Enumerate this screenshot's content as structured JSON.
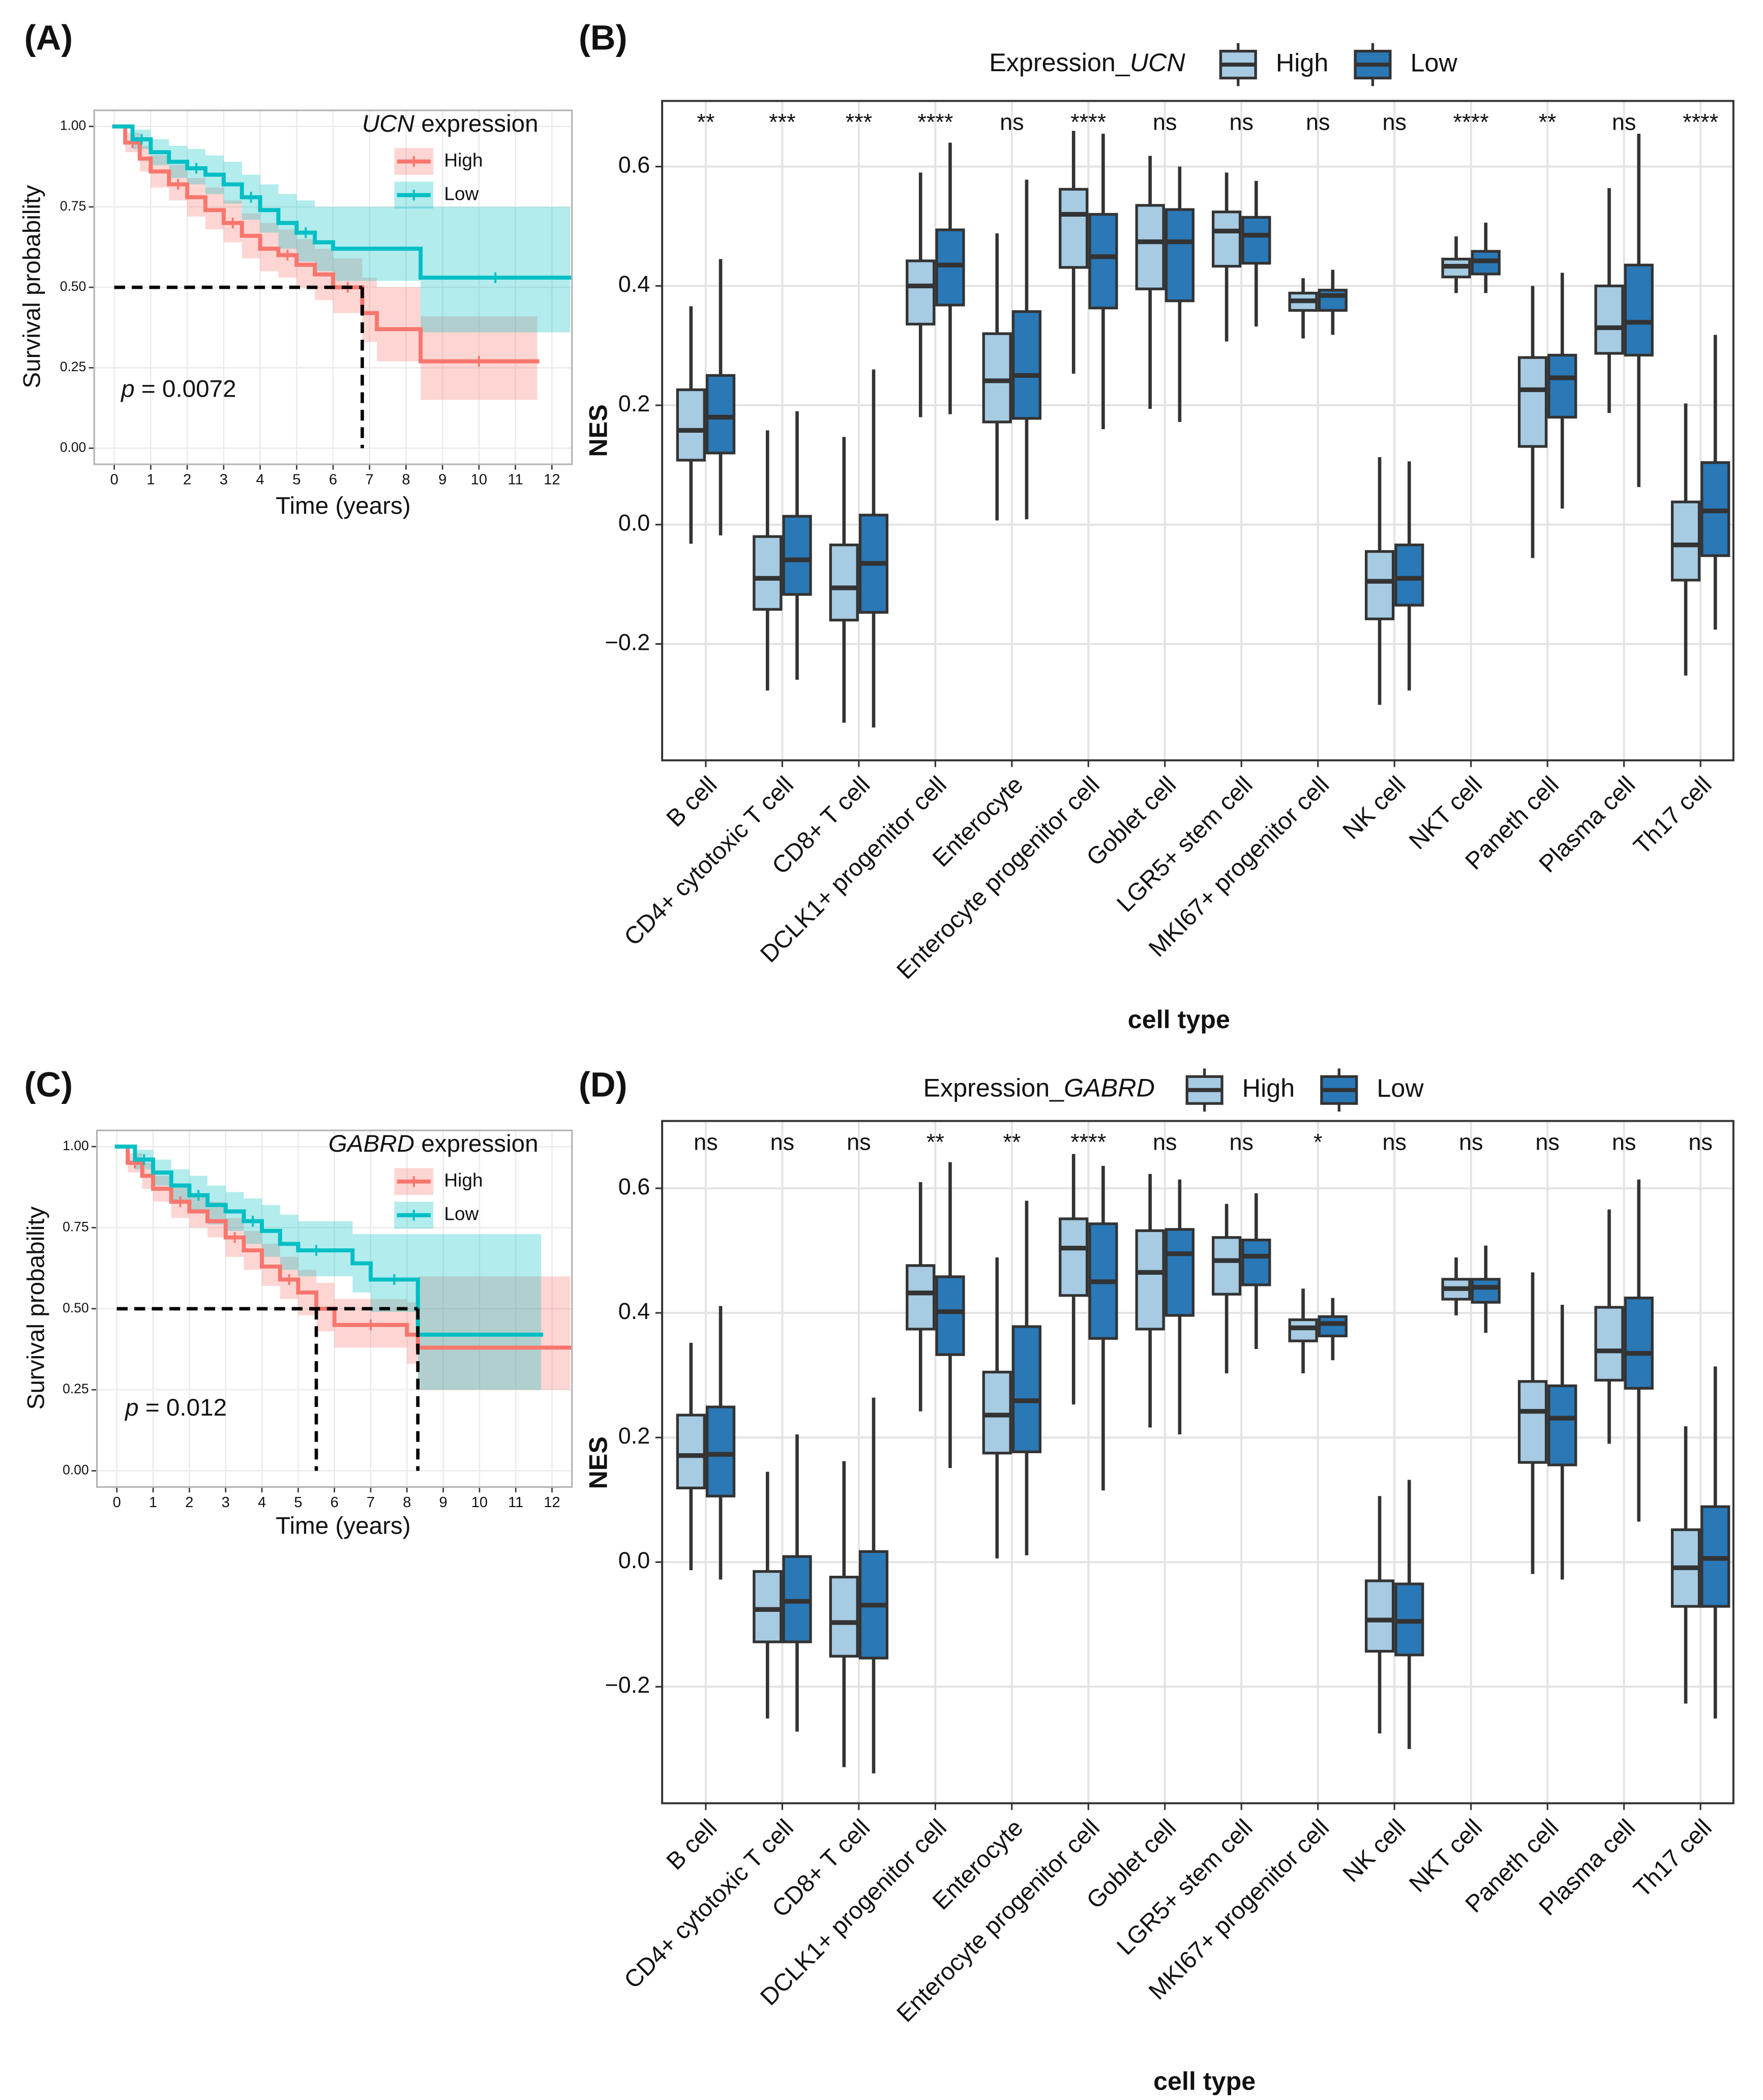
{
  "chart_data": [
    {
      "type": "survival",
      "panel_label": "(A)",
      "xlabel": "Time (years)",
      "ylabel": "Survival probability",
      "xlim": [
        -0.55,
        12.55
      ],
      "ylim": [
        -0.05,
        1.05
      ],
      "xticks": [
        0,
        1,
        2,
        3,
        4,
        5,
        6,
        7,
        8,
        9,
        10,
        11,
        12
      ],
      "yticks": [
        {
          "value": 0,
          "label": "0.00"
        },
        0.25,
        {
          "value": 0.5,
          "label": "0.50"
        },
        0.75,
        {
          "value": 1,
          "label": "1.00"
        }
      ],
      "grid": true,
      "legend_title": [
        "UCN",
        "expression"
      ],
      "annotation": [
        "p",
        "= 0.0072"
      ],
      "median_lines": {
        "y": 0.5,
        "x": [
          6.8
        ]
      },
      "series": [
        {
          "name": "High",
          "color": "#f8766d",
          "x": [
            0,
            0.3,
            0.7,
            1,
            1.5,
            2,
            2.5,
            3,
            3.5,
            4,
            4.5,
            5,
            5.5,
            6,
            6.8,
            7.2,
            8.4,
            11.6
          ],
          "survival": [
            1,
            0.95,
            0.9,
            0.86,
            0.82,
            0.78,
            0.74,
            0.7,
            0.66,
            0.62,
            0.6,
            0.57,
            0.54,
            0.5,
            0.42,
            0.37,
            0.27,
            0.27
          ],
          "lower": [
            1,
            0.92,
            0.86,
            0.81,
            0.77,
            0.72,
            0.68,
            0.64,
            0.59,
            0.55,
            0.53,
            0.5,
            0.46,
            0.42,
            0.33,
            0.27,
            0.15,
            0.15
          ],
          "upper": [
            1,
            0.98,
            0.94,
            0.91,
            0.88,
            0.84,
            0.81,
            0.77,
            0.73,
            0.7,
            0.68,
            0.65,
            0.62,
            0.59,
            0.53,
            0.5,
            0.41,
            0.41
          ]
        },
        {
          "name": "Low",
          "color": "#00bfc4",
          "x": [
            0,
            0.5,
            1,
            1.5,
            2,
            2.5,
            3,
            3.5,
            4,
            4.5,
            5,
            5.5,
            6,
            8.4,
            12.5
          ],
          "survival": [
            1,
            0.96,
            0.92,
            0.89,
            0.87,
            0.85,
            0.82,
            0.78,
            0.74,
            0.7,
            0.67,
            0.64,
            0.62,
            0.53,
            0.53
          ],
          "lower": [
            1,
            0.93,
            0.88,
            0.84,
            0.82,
            0.79,
            0.76,
            0.71,
            0.67,
            0.62,
            0.58,
            0.55,
            0.52,
            0.36,
            0.36
          ],
          "upper": [
            1,
            0.99,
            0.96,
            0.94,
            0.93,
            0.91,
            0.89,
            0.85,
            0.82,
            0.79,
            0.77,
            0.75,
            0.75,
            0.75,
            0.75
          ]
        }
      ]
    },
    {
      "type": "box",
      "panel_label": "(B)",
      "xlabel": "cell type",
      "ylabel": "NES",
      "ylim": [
        -0.395,
        0.71
      ],
      "yticks": [
        {
          "value": -0.2,
          "label": "−0.2"
        },
        {
          "value": 0,
          "label": "0.0"
        },
        0.2,
        0.4,
        0.6
      ],
      "grid": true,
      "legend_title": [
        "Expression_",
        "UCN"
      ],
      "categories": [
        "B cell",
        "CD4+ cytotoxic T cell",
        "CD8+ T cell",
        "DCLK1+ progenitor cell",
        "Enterocyte",
        "Enterocyte progenitor cell",
        "Goblet cell",
        "LGR5+ stem cell",
        "MKI67+ progenitor cell",
        "NK cell",
        "NKT cell",
        "Paneth cell",
        "Plasma cell",
        "Th17 cell"
      ],
      "significance": [
        "**",
        "***",
        "***",
        "****",
        "ns",
        "****",
        "ns",
        "ns",
        "ns",
        "ns",
        "****",
        "**",
        "ns",
        "****"
      ],
      "series": [
        {
          "name": "High",
          "color": "#a6cbe3",
          "whisker_low": [
            -0.032,
            -0.278,
            -0.332,
            0.18,
            0.007,
            0.253,
            0.194,
            0.307,
            0.312,
            -0.302,
            0.388,
            -0.056,
            0.187,
            -0.253
          ],
          "q1": [
            0.108,
            -0.142,
            -0.16,
            0.336,
            0.172,
            0.431,
            0.395,
            0.433,
            0.359,
            -0.158,
            0.415,
            0.131,
            0.287,
            -0.093
          ],
          "median": [
            0.158,
            -0.09,
            -0.106,
            0.4,
            0.241,
            0.52,
            0.474,
            0.492,
            0.375,
            -0.095,
            0.433,
            0.226,
            0.33,
            -0.034
          ],
          "q3": [
            0.226,
            -0.02,
            -0.034,
            0.442,
            0.32,
            0.562,
            0.535,
            0.524,
            0.388,
            -0.045,
            0.445,
            0.28,
            0.4,
            0.038
          ],
          "whisker_high": [
            0.366,
            0.158,
            0.147,
            0.59,
            0.488,
            0.66,
            0.618,
            0.59,
            0.413,
            0.113,
            0.483,
            0.4,
            0.564,
            0.203
          ]
        },
        {
          "name": "Low",
          "color": "#2a78b6",
          "whisker_low": [
            -0.018,
            -0.26,
            -0.34,
            0.185,
            0.009,
            0.16,
            0.172,
            0.332,
            0.318,
            -0.278,
            0.388,
            0.027,
            0.063,
            -0.176
          ],
          "q1": [
            0.12,
            -0.117,
            -0.147,
            0.368,
            0.178,
            0.363,
            0.375,
            0.438,
            0.359,
            -0.135,
            0.42,
            0.18,
            0.284,
            -0.052
          ],
          "median": [
            0.18,
            -0.059,
            -0.065,
            0.435,
            0.25,
            0.449,
            0.474,
            0.485,
            0.384,
            -0.09,
            0.442,
            0.246,
            0.339,
            0.023
          ],
          "q3": [
            0.25,
            0.014,
            0.016,
            0.494,
            0.357,
            0.52,
            0.528,
            0.515,
            0.393,
            -0.034,
            0.458,
            0.284,
            0.435,
            0.104
          ],
          "whisker_high": [
            0.445,
            0.19,
            0.26,
            0.64,
            0.578,
            0.655,
            0.6,
            0.576,
            0.427,
            0.106,
            0.506,
            0.422,
            0.655,
            0.318
          ]
        }
      ]
    },
    {
      "type": "survival",
      "panel_label": "(C)",
      "xlabel": "Time (years)",
      "ylabel": "Survival probability",
      "xlim": [
        -0.55,
        12.55
      ],
      "ylim": [
        -0.05,
        1.05
      ],
      "xticks": [
        0,
        1,
        2,
        3,
        4,
        5,
        6,
        7,
        8,
        9,
        10,
        11,
        12
      ],
      "yticks": [
        {
          "value": 0,
          "label": "0.00"
        },
        0.25,
        {
          "value": 0.5,
          "label": "0.50"
        },
        0.75,
        {
          "value": 1,
          "label": "1.00"
        }
      ],
      "grid": true,
      "legend_title": [
        "GABRD",
        "expression"
      ],
      "annotation": [
        "p",
        "= 0.012"
      ],
      "median_lines": {
        "y": 0.5,
        "x": [
          5.5,
          8.3
        ]
      },
      "series": [
        {
          "name": "High",
          "color": "#f8766d",
          "x": [
            0,
            0.3,
            0.7,
            1,
            1.5,
            2,
            2.5,
            3,
            3.5,
            4,
            4.5,
            5,
            5.5,
            6,
            8,
            8.3,
            12.5
          ],
          "survival": [
            1,
            0.95,
            0.91,
            0.87,
            0.83,
            0.8,
            0.77,
            0.72,
            0.68,
            0.63,
            0.59,
            0.55,
            0.5,
            0.45,
            0.42,
            0.38,
            0.38
          ],
          "lower": [
            1,
            0.92,
            0.87,
            0.83,
            0.78,
            0.75,
            0.72,
            0.66,
            0.62,
            0.57,
            0.53,
            0.48,
            0.43,
            0.38,
            0.33,
            0.25,
            0.25
          ],
          "upper": [
            1,
            0.98,
            0.95,
            0.91,
            0.88,
            0.85,
            0.83,
            0.78,
            0.74,
            0.7,
            0.66,
            0.62,
            0.58,
            0.53,
            0.52,
            0.6,
            0.6
          ]
        },
        {
          "name": "Low",
          "color": "#00bfc4",
          "x": [
            0,
            0.5,
            1,
            1.5,
            2,
            2.5,
            3,
            3.5,
            4,
            4.5,
            5,
            6,
            6.5,
            7,
            8.3,
            11.7
          ],
          "survival": [
            1,
            0.96,
            0.92,
            0.88,
            0.85,
            0.82,
            0.8,
            0.77,
            0.74,
            0.7,
            0.68,
            0.68,
            0.64,
            0.59,
            0.42,
            0.42
          ],
          "lower": [
            1,
            0.93,
            0.88,
            0.83,
            0.8,
            0.76,
            0.74,
            0.7,
            0.66,
            0.62,
            0.6,
            0.6,
            0.55,
            0.49,
            0.25,
            0.25
          ],
          "upper": [
            1,
            0.99,
            0.96,
            0.93,
            0.91,
            0.88,
            0.86,
            0.84,
            0.82,
            0.79,
            0.77,
            0.77,
            0.73,
            0.73,
            0.73,
            0.73
          ]
        }
      ]
    },
    {
      "type": "box",
      "panel_label": "(D)",
      "xlabel": "cell type",
      "ylabel": "NES",
      "ylim": [
        -0.387,
        0.708
      ],
      "yticks": [
        {
          "value": -0.2,
          "label": "−0.2"
        },
        {
          "value": 0,
          "label": "0.0"
        },
        0.2,
        0.4,
        0.6
      ],
      "grid": true,
      "legend_title": [
        "Expression_",
        "GABRD"
      ],
      "categories": [
        "B cell",
        "CD4+ cytotoxic T cell",
        "CD8+ T cell",
        "DCLK1+ progenitor cell",
        "Enterocyte",
        "Enterocyte progenitor cell",
        "Goblet cell",
        "LGR5+ stem cell",
        "MKI67+ progenitor cell",
        "NK cell",
        "NKT cell",
        "Paneth cell",
        "Plasma cell",
        "Th17 cell"
      ],
      "significance": [
        "ns",
        "ns",
        "ns",
        "**",
        "**",
        "****",
        "ns",
        "ns",
        "*",
        "ns",
        "ns",
        "ns",
        "ns",
        "ns"
      ],
      "series": [
        {
          "name": "High",
          "color": "#a6cbe3",
          "whisker_low": [
            -0.013,
            -0.251,
            -0.329,
            0.242,
            0.006,
            0.253,
            0.216,
            0.303,
            0.303,
            -0.275,
            0.396,
            -0.019,
            0.19,
            -0.227
          ],
          "q1": [
            0.119,
            -0.128,
            -0.151,
            0.374,
            0.175,
            0.428,
            0.374,
            0.43,
            0.355,
            -0.143,
            0.422,
            0.16,
            0.292,
            -0.071
          ],
          "median": [
            0.171,
            -0.076,
            -0.097,
            0.432,
            0.236,
            0.504,
            0.465,
            0.484,
            0.376,
            -0.093,
            0.439,
            0.242,
            0.339,
            -0.009
          ],
          "q3": [
            0.236,
            -0.015,
            -0.024,
            0.476,
            0.305,
            0.551,
            0.532,
            0.521,
            0.389,
            -0.03,
            0.454,
            0.29,
            0.409,
            0.052
          ],
          "whisker_high": [
            0.352,
            0.145,
            0.162,
            0.61,
            0.489,
            0.655,
            0.623,
            0.575,
            0.439,
            0.106,
            0.489,
            0.465,
            0.566,
            0.218
          ]
        },
        {
          "name": "Low",
          "color": "#2a78b6",
          "whisker_low": [
            -0.028,
            -0.272,
            -0.339,
            0.151,
            0.011,
            0.115,
            0.205,
            0.342,
            0.324,
            -0.3,
            0.368,
            -0.028,
            0.065,
            -0.251
          ],
          "q1": [
            0.106,
            -0.128,
            -0.154,
            0.333,
            0.177,
            0.359,
            0.396,
            0.445,
            0.363,
            -0.149,
            0.417,
            0.156,
            0.279,
            -0.071
          ],
          "median": [
            0.173,
            -0.063,
            -0.069,
            0.402,
            0.259,
            0.45,
            0.495,
            0.491,
            0.383,
            -0.095,
            0.441,
            0.231,
            0.335,
            0.006
          ],
          "q3": [
            0.249,
            0.009,
            0.017,
            0.458,
            0.378,
            0.543,
            0.534,
            0.517,
            0.394,
            -0.035,
            0.454,
            0.283,
            0.424,
            0.089
          ],
          "whisker_high": [
            0.411,
            0.205,
            0.264,
            0.642,
            0.58,
            0.636,
            0.614,
            0.592,
            0.424,
            0.132,
            0.508,
            0.413,
            0.614,
            0.314
          ]
        }
      ]
    }
  ]
}
